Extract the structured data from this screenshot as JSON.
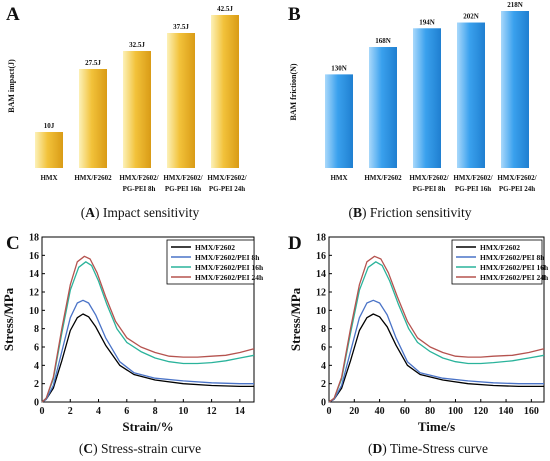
{
  "colors": {
    "gold_light": "#fcf1b8",
    "gold": "#f2c23a",
    "gold_dark": "#d99b16",
    "blue_light": "#a9d8fb",
    "blue": "#3aa1ee",
    "blue_dark": "#1f7fd0",
    "black": "#111111",
    "line_black": "#000000",
    "line_blue": "#4a73c7",
    "line_teal": "#2ab39b",
    "line_red": "#b5534f"
  },
  "chart_data": [
    {
      "type": "bar",
      "panel": "A",
      "caption_letter": "(A)",
      "caption_text": " Impact sensitivity",
      "ylabel": "BAM impact(J)",
      "categories": [
        [
          "HMX"
        ],
        [
          "HMX/F2602"
        ],
        [
          "HMX/F2602/",
          "PG-PEI 8h"
        ],
        [
          "HMX/F2602/",
          "PG-PEI 16h"
        ],
        [
          "HMX/F2602/",
          "PG-PEI 24h"
        ]
      ],
      "values": [
        10,
        27.5,
        32.5,
        37.5,
        42.5
      ],
      "value_labels": [
        "10J",
        "27.5J",
        "32.5J",
        "37.5J",
        "42.5J"
      ],
      "ylim": [
        0,
        42.5
      ]
    },
    {
      "type": "bar",
      "panel": "B",
      "caption_letter": "(B)",
      "caption_text": " Friction sensitivity",
      "ylabel": "BAM friction(N)",
      "categories": [
        [
          "HMX"
        ],
        [
          "HMX/F2602"
        ],
        [
          "HMX/F2602/",
          "PG-PEI 8h"
        ],
        [
          "HMX/F2602/",
          "PG-PEI 16h"
        ],
        [
          "HMX/F2602/",
          "PG-PEI 24h"
        ]
      ],
      "values": [
        130,
        168,
        194,
        202,
        218
      ],
      "value_labels": [
        "130N",
        "168N",
        "194N",
        "202N",
        "218N"
      ],
      "ylim": [
        0,
        218
      ]
    },
    {
      "type": "line",
      "panel": "C",
      "caption_letter": "(C)",
      "caption_text": " Stress-strain curve",
      "xlabel": "Strain/%",
      "ylabel": "Stress/MPa",
      "xlim": [
        0,
        15
      ],
      "ylim": [
        0,
        18
      ],
      "xticks": [
        0,
        2,
        4,
        6,
        8,
        10,
        12,
        14
      ],
      "yticks": [
        0,
        2,
        4,
        6,
        8,
        10,
        12,
        14,
        16,
        18
      ],
      "legend_position": "top-right",
      "series": [
        {
          "name": "HMX/F2602",
          "color": "#000000",
          "x": [
            0,
            0.3,
            0.8,
            1.4,
            2.0,
            2.5,
            2.9,
            3.3,
            3.8,
            4.5,
            5.5,
            6.5,
            8.0,
            10.0,
            12.0,
            14.0,
            15.0
          ],
          "y": [
            0,
            0.3,
            1.5,
            4.5,
            7.8,
            9.2,
            9.6,
            9.3,
            8.2,
            6.2,
            4.0,
            3.0,
            2.4,
            2.0,
            1.8,
            1.7,
            1.7
          ]
        },
        {
          "name": "HMX/F2602/PEI 8h",
          "color": "#4a73c7",
          "x": [
            0,
            0.3,
            0.8,
            1.4,
            2.0,
            2.5,
            2.9,
            3.3,
            3.8,
            4.5,
            5.5,
            6.5,
            8.0,
            10.0,
            12.0,
            14.0,
            15.0
          ],
          "y": [
            0,
            0.3,
            1.8,
            5.5,
            9.2,
            10.8,
            11.1,
            10.8,
            9.5,
            7.0,
            4.4,
            3.2,
            2.6,
            2.3,
            2.1,
            2.0,
            2.0
          ]
        },
        {
          "name": "HMX/F2602/PEI 16h",
          "color": "#2ab39b",
          "x": [
            0,
            0.3,
            0.8,
            1.4,
            2.0,
            2.6,
            3.1,
            3.5,
            4.0,
            4.6,
            5.3,
            6.0,
            7.0,
            8.0,
            9.0,
            10.0,
            11.0,
            12.0,
            13.0,
            14.0,
            15.0
          ],
          "y": [
            0,
            0.4,
            2.5,
            7.5,
            12.2,
            14.7,
            15.3,
            14.9,
            13.2,
            10.6,
            8.0,
            6.5,
            5.5,
            4.8,
            4.4,
            4.2,
            4.2,
            4.3,
            4.5,
            4.8,
            5.1
          ]
        },
        {
          "name": "HMX/F2602/PEI 24h",
          "color": "#b5534f",
          "x": [
            0,
            0.3,
            0.8,
            1.4,
            2.0,
            2.5,
            3.0,
            3.4,
            3.9,
            4.5,
            5.2,
            6.0,
            7.0,
            8.0,
            9.0,
            10.0,
            11.0,
            12.0,
            13.0,
            14.0,
            15.0
          ],
          "y": [
            0,
            0.4,
            2.7,
            8.0,
            12.8,
            15.3,
            15.9,
            15.6,
            14.1,
            11.5,
            8.8,
            7.0,
            6.0,
            5.4,
            5.0,
            4.9,
            4.9,
            5.0,
            5.1,
            5.4,
            5.8
          ]
        }
      ]
    },
    {
      "type": "line",
      "panel": "D",
      "caption_letter": "(D)",
      "caption_text": " Time-Stress curve",
      "xlabel": "Time/s",
      "ylabel": "Stress/MPa",
      "xlim": [
        0,
        170
      ],
      "ylim": [
        0,
        18
      ],
      "xticks": [
        0,
        20,
        40,
        60,
        80,
        100,
        120,
        140,
        160
      ],
      "yticks": [
        0,
        2,
        4,
        6,
        8,
        10,
        12,
        14,
        16,
        18
      ],
      "legend_position": "top-right",
      "series": [
        {
          "name": "HMX/F2602",
          "color": "#000000",
          "x": [
            0,
            4,
            10,
            17,
            24,
            30,
            35,
            40,
            46,
            53,
            62,
            72,
            90,
            110,
            130,
            150,
            170
          ],
          "y": [
            0,
            0.3,
            1.5,
            4.5,
            7.8,
            9.2,
            9.6,
            9.3,
            8.2,
            6.2,
            4.0,
            3.0,
            2.4,
            2.0,
            1.8,
            1.7,
            1.7
          ]
        },
        {
          "name": "HMX/F2602/PEI 8h",
          "color": "#4a73c7",
          "x": [
            0,
            4,
            10,
            17,
            24,
            30,
            35,
            40,
            46,
            53,
            62,
            72,
            90,
            110,
            130,
            150,
            170
          ],
          "y": [
            0,
            0.3,
            1.8,
            5.5,
            9.2,
            10.8,
            11.1,
            10.8,
            9.5,
            7.0,
            4.4,
            3.2,
            2.6,
            2.3,
            2.1,
            2.0,
            2.0
          ]
        },
        {
          "name": "HMX/F2602/PEI 16h",
          "color": "#2ab39b",
          "x": [
            0,
            4,
            10,
            17,
            24,
            31,
            37,
            42,
            48,
            55,
            63,
            70,
            80,
            90,
            100,
            110,
            120,
            130,
            145,
            158,
            170
          ],
          "y": [
            0,
            0.4,
            2.5,
            7.5,
            12.2,
            14.7,
            15.3,
            14.9,
            13.2,
            10.6,
            8.0,
            6.5,
            5.5,
            4.8,
            4.4,
            4.2,
            4.2,
            4.3,
            4.5,
            4.8,
            5.1
          ]
        },
        {
          "name": "HMX/F2602/PEI 24h",
          "color": "#b5534f",
          "x": [
            0,
            4,
            10,
            17,
            24,
            30,
            36,
            41,
            47,
            54,
            62,
            70,
            80,
            90,
            100,
            110,
            120,
            130,
            145,
            158,
            170
          ],
          "y": [
            0,
            0.4,
            2.7,
            8.0,
            12.8,
            15.3,
            15.9,
            15.6,
            14.1,
            11.5,
            8.8,
            7.0,
            6.0,
            5.4,
            5.0,
            4.9,
            4.9,
            5.0,
            5.1,
            5.4,
            5.8
          ]
        }
      ]
    }
  ]
}
